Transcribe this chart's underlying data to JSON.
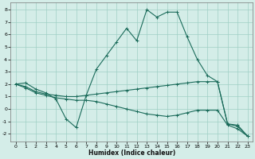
{
  "xlabel": "Humidex (Indice chaleur)",
  "xlim": [
    -0.5,
    23.5
  ],
  "ylim": [
    -2.6,
    8.6
  ],
  "xticks": [
    0,
    1,
    2,
    3,
    4,
    5,
    6,
    7,
    8,
    9,
    10,
    11,
    12,
    13,
    14,
    15,
    16,
    17,
    18,
    19,
    20,
    21,
    22,
    23
  ],
  "yticks": [
    -2,
    -1,
    0,
    1,
    2,
    3,
    4,
    5,
    6,
    7,
    8
  ],
  "background_color": "#d4ede8",
  "grid_color": "#9fcfc5",
  "line_color": "#1a6b5a",
  "line1_y": [
    2.0,
    2.1,
    1.6,
    1.3,
    0.8,
    -0.8,
    -1.5,
    1.1,
    3.2,
    4.3,
    5.4,
    6.5,
    5.5,
    8.0,
    7.4,
    7.8,
    7.8,
    5.8,
    4.0,
    2.7,
    2.2,
    -1.2,
    -1.3,
    -2.2
  ],
  "line2_y": [
    2.0,
    1.8,
    1.4,
    1.2,
    1.1,
    1.0,
    1.0,
    1.1,
    1.2,
    1.3,
    1.4,
    1.5,
    1.6,
    1.7,
    1.8,
    1.9,
    2.0,
    2.1,
    2.2,
    2.2,
    2.2,
    -1.2,
    -1.4,
    -2.2
  ],
  "line3_y": [
    2.0,
    1.7,
    1.3,
    1.1,
    0.9,
    0.8,
    0.7,
    0.7,
    0.6,
    0.4,
    0.2,
    0.0,
    -0.2,
    -0.4,
    -0.5,
    -0.6,
    -0.5,
    -0.3,
    -0.1,
    -0.1,
    -0.1,
    -1.3,
    -1.6,
    -2.2
  ]
}
